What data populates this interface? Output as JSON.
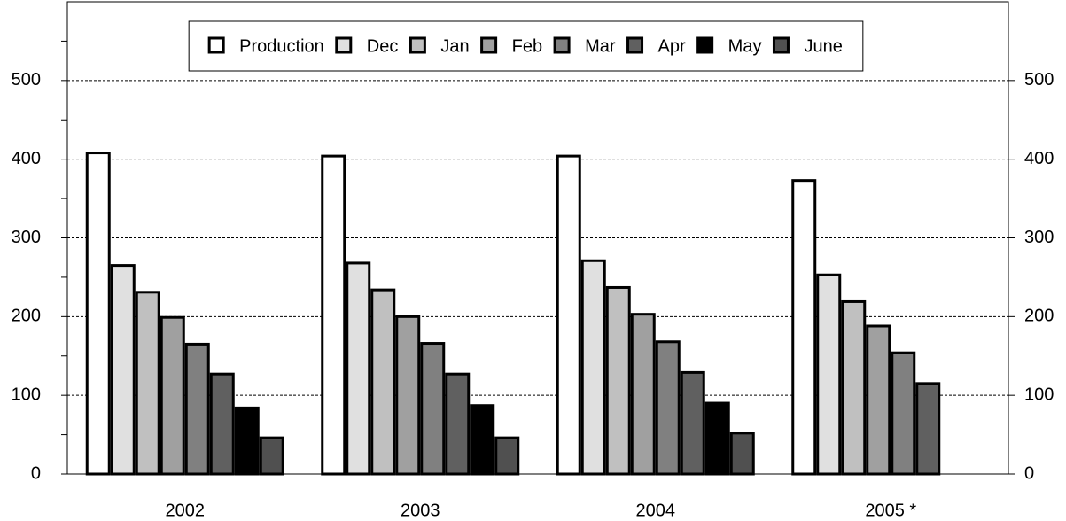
{
  "chart_data": {
    "type": "bar",
    "categories": [
      "2002",
      "2003",
      "2004",
      "2005 *"
    ],
    "series": [
      {
        "name": "Production",
        "color": "#ffffff",
        "values": [
          408,
          404,
          404,
          373
        ]
      },
      {
        "name": "Dec",
        "color": "#e0e0e0",
        "values": [
          265,
          268,
          271,
          253
        ]
      },
      {
        "name": "Jan",
        "color": "#c0c0c0",
        "values": [
          231,
          234,
          237,
          219
        ]
      },
      {
        "name": "Feb",
        "color": "#a0a0a0",
        "values": [
          199,
          200,
          203,
          188
        ]
      },
      {
        "name": "Mar",
        "color": "#808080",
        "values": [
          165,
          166,
          168,
          154
        ]
      },
      {
        "name": "Apr",
        "color": "#606060",
        "values": [
          127,
          127,
          129,
          115
        ]
      },
      {
        "name": "May",
        "color": "#000000",
        "values": [
          84,
          87,
          90,
          null
        ]
      },
      {
        "name": "June",
        "color": "#505050",
        "values": [
          46,
          46,
          52,
          null
        ]
      }
    ],
    "ylim": [
      0,
      600
    ],
    "yticks": [
      0,
      100,
      200,
      300,
      400,
      500
    ],
    "minor_yticks": [
      50,
      150,
      250,
      350,
      450,
      550
    ],
    "y2lim": [
      0,
      600
    ],
    "y2ticks": [
      0,
      100,
      200,
      300,
      400,
      500
    ],
    "grid": true,
    "legend": "top"
  }
}
